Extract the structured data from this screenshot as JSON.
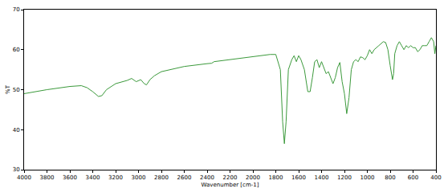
{
  "chart_data": {
    "type": "line",
    "x_label": "Wavenumber [cm-1]",
    "y_label": "%T",
    "color": "#3c9a3c",
    "grid": false,
    "xlim": [
      4000,
      400
    ],
    "xticks": [
      4000,
      3800,
      3600,
      3400,
      3200,
      3000,
      2800,
      2600,
      2400,
      2200,
      2000,
      1800,
      1600,
      1400,
      1200,
      1000,
      800,
      600,
      400
    ],
    "ylim": [
      30,
      70
    ],
    "yticks": [
      30,
      40,
      50,
      60,
      70
    ],
    "x": [
      4000,
      3800,
      3600,
      3500,
      3450,
      3400,
      3350,
      3320,
      3280,
      3200,
      3100,
      3060,
      3020,
      2980,
      2950,
      2930,
      2900,
      2860,
      2800,
      2600,
      2400,
      2360,
      2340,
      2200,
      2000,
      1850,
      1800,
      1760,
      1740,
      1725,
      1710,
      1690,
      1660,
      1640,
      1620,
      1600,
      1580,
      1550,
      1520,
      1500,
      1480,
      1460,
      1440,
      1420,
      1400,
      1380,
      1360,
      1340,
      1320,
      1300,
      1280,
      1260,
      1240,
      1220,
      1200,
      1180,
      1160,
      1140,
      1120,
      1100,
      1080,
      1060,
      1040,
      1020,
      1000,
      980,
      960,
      940,
      900,
      880,
      860,
      840,
      820,
      800,
      780,
      770,
      760,
      740,
      720,
      700,
      680,
      660,
      640,
      620,
      600,
      580,
      560,
      540,
      520,
      500,
      480,
      460,
      440,
      420,
      410,
      400
    ],
    "values": [
      49,
      50,
      50.8,
      51,
      50.5,
      49.5,
      48.3,
      48.5,
      50,
      51.5,
      52.3,
      52.8,
      52,
      52.5,
      51.5,
      51.2,
      52.5,
      53.5,
      54.5,
      55.8,
      56.5,
      56.6,
      57,
      57.5,
      58.3,
      58.8,
      58.8,
      55,
      42,
      36.5,
      42,
      55,
      57.5,
      58.5,
      57,
      58.5,
      57.5,
      55,
      49.5,
      49.5,
      53,
      57,
      57.5,
      55.5,
      57,
      55.5,
      54,
      54.5,
      53,
      51.5,
      53,
      55.5,
      56.8,
      52,
      49,
      44,
      48,
      55,
      57,
      57.5,
      57,
      58.2,
      58,
      57.5,
      58.5,
      60,
      59,
      60,
      61,
      61.5,
      62,
      61.8,
      60,
      56,
      52.5,
      54,
      59,
      61,
      62,
      61,
      60,
      61,
      60.5,
      61,
      60.5,
      60.5,
      59.5,
      60,
      61,
      61,
      61,
      62,
      63,
      62,
      59,
      61
    ]
  }
}
